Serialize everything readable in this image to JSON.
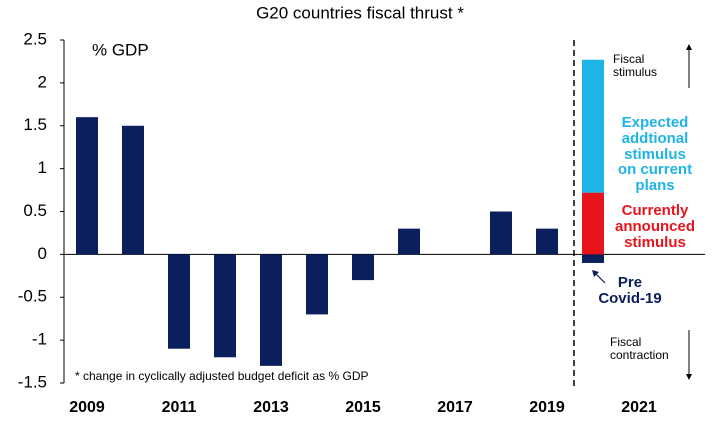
{
  "chart_data": {
    "type": "bar",
    "title": "G20 countries fiscal thrust *",
    "y_label": "% GDP",
    "categories": [
      "2009",
      null,
      "2011",
      null,
      "2013",
      null,
      "2015",
      null,
      "2017",
      null,
      "2019",
      null,
      "2021"
    ],
    "series": [
      {
        "color": "#0b1f5c",
        "values": [
          1.6,
          1.5,
          -1.1,
          -1.2,
          -1.3,
          -0.7,
          -0.3,
          0.3,
          null,
          0.5,
          0.3,
          -0.1,
          null
        ]
      },
      {
        "name": "Currently\nannounced\nstimulus",
        "color": "#e8141b",
        "values": [
          null,
          null,
          null,
          null,
          null,
          null,
          null,
          null,
          null,
          null,
          null,
          0.72,
          null
        ]
      },
      {
        "name": "Expected\naddtional\nstimulus\non current\nplans",
        "color": "#1fb4e6",
        "values": [
          null,
          null,
          null,
          null,
          null,
          null,
          null,
          null,
          null,
          null,
          null,
          1.55,
          null
        ]
      }
    ],
    "ylim": [
      -1.5,
      2.5
    ],
    "yticks": [
      -1.5,
      -1,
      -0.5,
      0,
      0.5,
      1,
      1.5,
      2,
      2.5
    ],
    "annotations": [
      "Fiscal\nstimulus",
      "Fiscal\ncontraction",
      "Pre\nCovid-19",
      "* change in cyclically adjusted budget deficit as % GDP"
    ],
    "stacked": true,
    "grid": false
  }
}
